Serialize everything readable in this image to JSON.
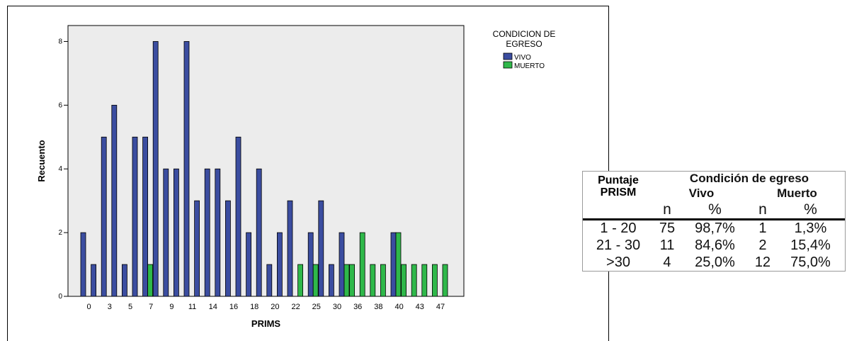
{
  "chart_data": {
    "type": "bar",
    "xlabel": "PRIMS",
    "ylabel": "Recuento",
    "ylim": [
      0,
      8.5
    ],
    "yticks": [
      0,
      2,
      4,
      6,
      8
    ],
    "tick_labels": [
      "0",
      "3",
      "5",
      "7",
      "9",
      "11",
      "14",
      "16",
      "18",
      "20",
      "22",
      "25",
      "30",
      "36",
      "38",
      "40",
      "43",
      "47"
    ],
    "grid": false,
    "legend_position": "top-right",
    "legend_title": "CONDICION DE EGRESO",
    "series": [
      {
        "name": "VIVO",
        "color": "#3b4da0",
        "values": [
          2,
          1,
          5,
          6,
          1,
          5,
          5,
          8,
          4,
          4,
          8,
          3,
          4,
          4,
          3,
          5,
          2,
          4,
          1,
          2,
          3,
          null,
          2,
          3,
          1,
          2,
          null,
          null,
          null,
          null,
          2,
          null,
          null,
          null,
          null,
          null
        ]
      },
      {
        "name": "MUERTO",
        "color": "#2fb84a",
        "values": [
          null,
          null,
          null,
          null,
          null,
          null,
          1,
          null,
          null,
          null,
          null,
          null,
          null,
          null,
          null,
          null,
          null,
          null,
          null,
          null,
          null,
          1,
          1,
          null,
          null,
          1,
          1,
          2,
          1,
          1,
          2,
          1,
          1,
          1,
          1,
          1
        ]
      }
    ]
  },
  "table": {
    "header_group": "Condición de egreso",
    "row_header": [
      "Puntaje",
      "PRISM"
    ],
    "col_vivo": "Vivo",
    "col_muerto": "Muerto",
    "n_label": "n",
    "pct_label": "%",
    "rows": [
      {
        "range": "1 - 20",
        "vivo_n": "75",
        "vivo_pct": "98,7%",
        "muerto_n": "1",
        "muerto_pct": "1,3%"
      },
      {
        "range": "21 - 30",
        "vivo_n": "11",
        "vivo_pct": "84,6%",
        "muerto_n": "2",
        "muerto_pct": "15,4%"
      },
      {
        "range": ">30",
        "vivo_n": "4",
        "vivo_pct": "25,0%",
        "muerto_n": "12",
        "muerto_pct": "75,0%"
      }
    ]
  }
}
